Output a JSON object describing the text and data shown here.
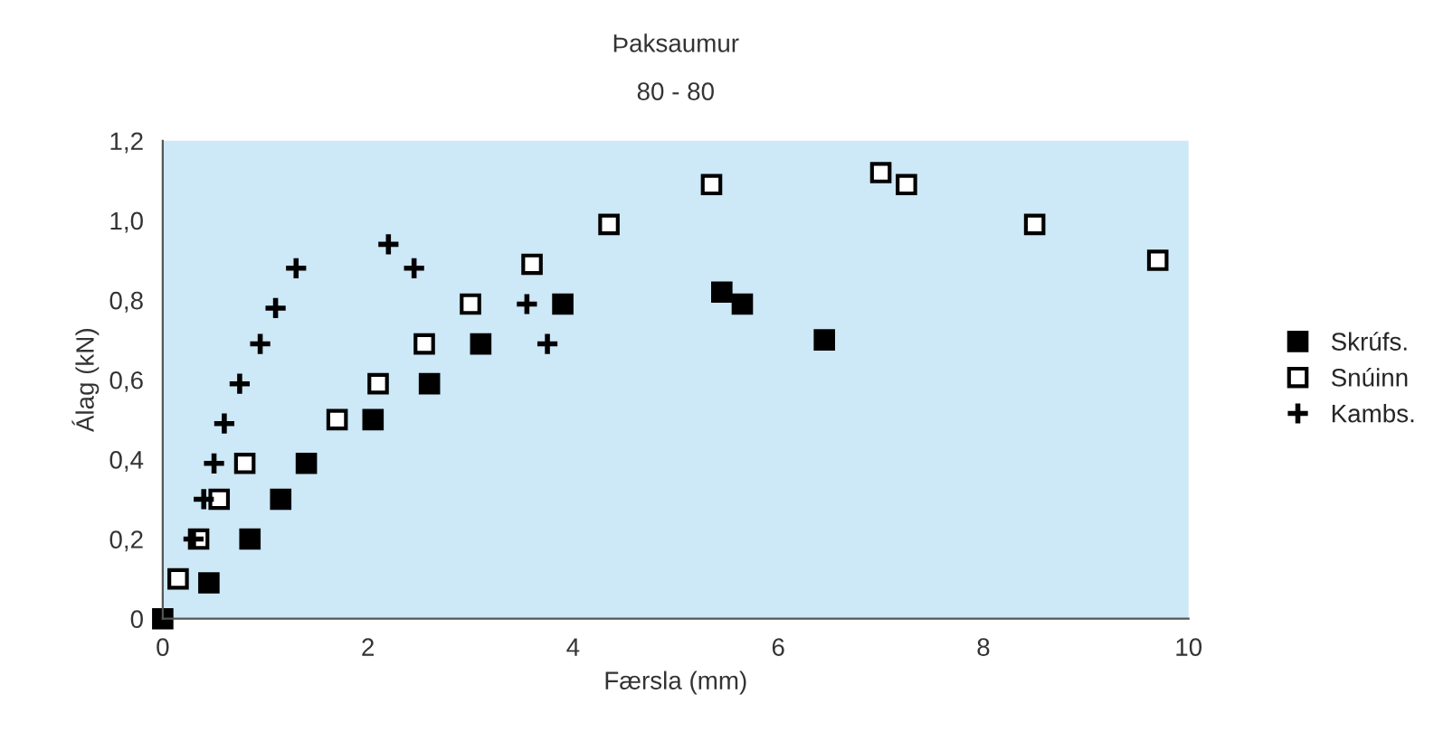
{
  "chart_data": {
    "type": "scatter",
    "title": "Þaksaumur",
    "subtitle": "80 - 80",
    "xlabel": "Færsla (mm)",
    "ylabel": "Álag (kN)",
    "series": [
      {
        "name": "Skrúfs.",
        "color": "#000000",
        "marker": "square",
        "x": [
          0,
          0.45,
          0.85,
          1.15,
          1.4,
          2.05,
          2.6,
          3.1,
          3.9,
          5.45,
          5.65,
          6.45
        ],
        "values": [
          0,
          0.09,
          0.2,
          0.3,
          0.39,
          0.5,
          0.59,
          0.69,
          0.79,
          0.82,
          0.79,
          0.7
        ]
      },
      {
        "name": "Snúinn",
        "color": "#ffffff",
        "marker": "square",
        "x": [
          0.15,
          0.35,
          0.55,
          0.8,
          1.7,
          2.1,
          2.55,
          3.0,
          3.6,
          4.35,
          5.35,
          7.0,
          7.25,
          8.5,
          9.7
        ],
        "values": [
          0.1,
          0.2,
          0.3,
          0.39,
          0.5,
          0.59,
          0.69,
          0.79,
          0.89,
          0.99,
          1.09,
          1.12,
          1.09,
          0.99,
          0.9
        ]
      },
      {
        "name": "Kambs.",
        "color": "#000000",
        "marker": "cross",
        "x": [
          0.3,
          0.4,
          0.5,
          0.6,
          0.75,
          0.95,
          1.1,
          1.3,
          2.2,
          2.45,
          3.55,
          3.75
        ],
        "values": [
          0.2,
          0.3,
          0.39,
          0.49,
          0.59,
          0.69,
          0.78,
          0.88,
          0.94,
          0.88,
          0.79,
          0.69
        ]
      }
    ],
    "xlim": [
      0,
      10
    ],
    "xticks": [
      0,
      2,
      4,
      6,
      8,
      10
    ],
    "ylim": [
      0,
      1.2
    ],
    "yticks": [
      {
        "value": 0,
        "label": "0"
      },
      {
        "value": 0.2,
        "label": "0,2"
      },
      {
        "value": 0.4,
        "label": "0,4"
      },
      {
        "value": 0.6,
        "label": "0,6"
      },
      {
        "value": 0.8,
        "label": "0,8"
      },
      {
        "value": 1.0,
        "label": "1,0"
      },
      {
        "value": 1.2,
        "label": "1,2"
      }
    ],
    "grid": false,
    "legend": "right"
  }
}
